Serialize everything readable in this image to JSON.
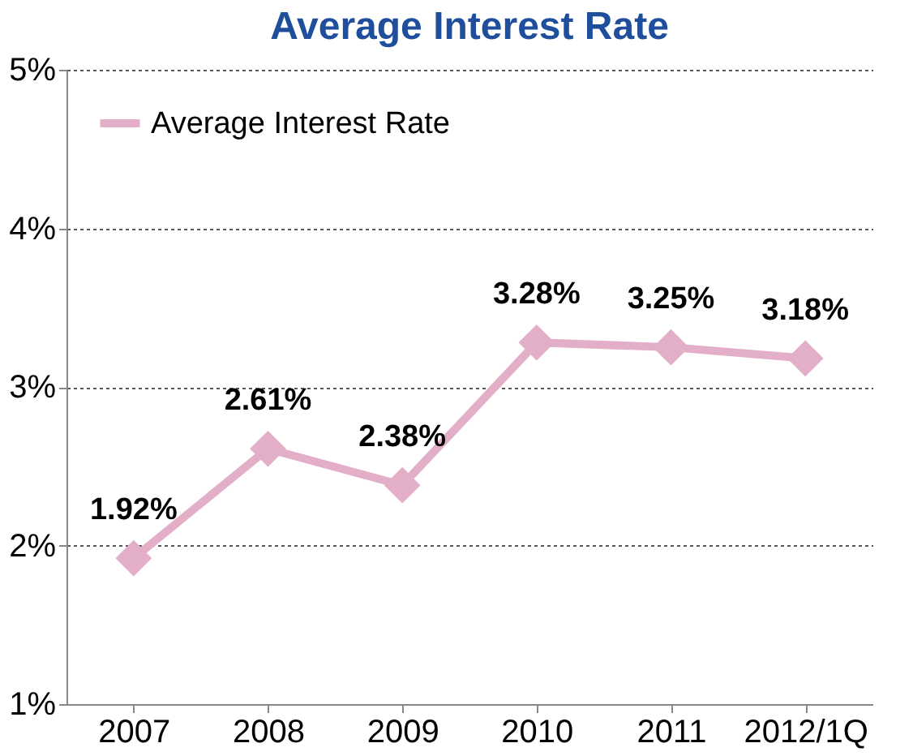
{
  "chart_data": {
    "type": "line",
    "title": "Average Interest Rate",
    "categories": [
      "2007",
      "2008",
      "2009",
      "2010",
      "2011",
      "2012/1Q"
    ],
    "series": [
      {
        "name": "Average Interest Rate",
        "color": "#e3aec8",
        "values": [
          1.92,
          2.61,
          2.38,
          3.28,
          3.25,
          3.18
        ]
      }
    ],
    "value_labels": [
      "1.92%",
      "2.61%",
      "2.38%",
      "3.28%",
      "3.25%",
      "3.18%"
    ],
    "ylim": [
      1,
      5
    ],
    "yticks": [
      {
        "value": 1,
        "label": "1%"
      },
      {
        "value": 2,
        "label": "2%"
      },
      {
        "value": 3,
        "label": "3%"
      },
      {
        "value": 4,
        "label": "4%"
      },
      {
        "value": 5,
        "label": "5%"
      }
    ],
    "grid": "y",
    "legend": "top left",
    "marker": "diamond",
    "line_style": "solid"
  }
}
